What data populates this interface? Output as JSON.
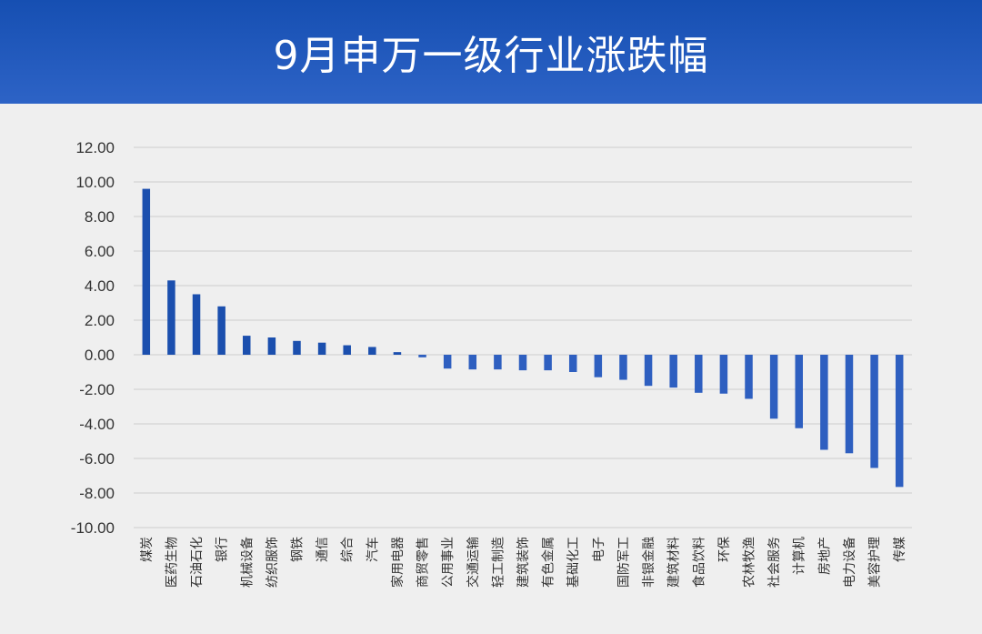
{
  "header": {
    "title": "9月申万一级行业涨跌幅",
    "bg_top": "#164fb2",
    "bg_bottom": "#2d63c6"
  },
  "chart_data": {
    "type": "bar",
    "title": "9月申万一级行业涨跌幅",
    "xlabel": "",
    "ylabel": "",
    "ylim": [
      -10,
      12
    ],
    "y_ticks": [
      "12.00",
      "10.00",
      "8.00",
      "6.00",
      "4.00",
      "2.00",
      "0.00",
      "-2.00",
      "-4.00",
      "-6.00",
      "-8.00",
      "-10.00"
    ],
    "grid": true,
    "bar_color_positive": "#1b4fae",
    "bar_color_negative": "#2e5fc0",
    "categories": [
      "煤炭",
      "医药生物",
      "石油石化",
      "银行",
      "机械设备",
      "纺织服饰",
      "钢铁",
      "通信",
      "综合",
      "汽车",
      "家用电器",
      "商贸零售",
      "公用事业",
      "交通运输",
      "轻工制造",
      "建筑装饰",
      "有色金属",
      "基础化工",
      "电子",
      "国防军工",
      "非银金融",
      "建筑材料",
      "食品饮料",
      "环保",
      "农林牧渔",
      "社会服务",
      "计算机",
      "房地产",
      "电力设备",
      "美容护理",
      "传媒"
    ],
    "values": [
      9.6,
      4.3,
      3.5,
      2.8,
      1.1,
      1.0,
      0.8,
      0.7,
      0.55,
      0.45,
      0.15,
      -0.15,
      -0.8,
      -0.85,
      -0.85,
      -0.9,
      -0.9,
      -1.0,
      -1.3,
      -1.45,
      -1.8,
      -1.9,
      -2.2,
      -2.25,
      -2.55,
      -3.7,
      -4.25,
      -5.5,
      -5.7,
      -6.55,
      -7.65
    ]
  }
}
